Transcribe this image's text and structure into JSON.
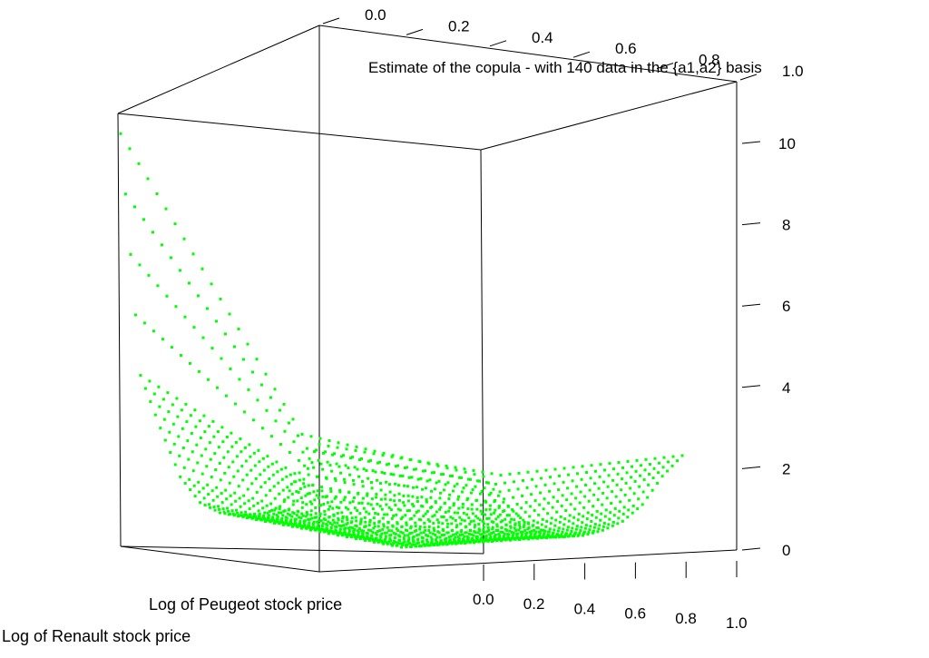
{
  "chart_data": {
    "type": "scatter",
    "title": "Estimate of the copula - with 140 data in the {a1,a2} basis",
    "x_axis": {
      "label": "Log of Peugeot stock price",
      "range": [
        0,
        1
      ],
      "ticks": [
        "0.0",
        "0.2",
        "0.4",
        "0.6",
        "0.8",
        "1.0"
      ]
    },
    "y_axis": {
      "label": "Log of Renault stock price",
      "range": [
        0,
        1
      ],
      "ticks": [
        "0.0",
        "0.2",
        "0.4",
        "0.6",
        "0.8",
        "1.0"
      ]
    },
    "z_axis": {
      "label": "",
      "range": [
        0,
        11
      ],
      "ticks": [
        "0",
        "2",
        "4",
        "6",
        "8",
        "10"
      ]
    },
    "grid_resolution": 40,
    "point_color": "#00ff00",
    "surface_samples": [
      {
        "u": 0.0,
        "v_profile": [
          10.7,
          4.5,
          3.2,
          2.0,
          1.4,
          1.2,
          1.2,
          1.3,
          1.5,
          2.5,
          3.3
        ]
      },
      {
        "u": 0.5,
        "v_profile": [
          3.0,
          1.6,
          1.1,
          0.7,
          0.5,
          0.4,
          0.5,
          0.7,
          1.0,
          1.6,
          2.6
        ]
      },
      {
        "u": 1.0,
        "v_profile": [
          2.0,
          1.4,
          1.0,
          0.8,
          0.7,
          0.8,
          1.0,
          1.3,
          1.8,
          2.6,
          3.2
        ]
      }
    ],
    "grid": false,
    "legend": "none"
  }
}
